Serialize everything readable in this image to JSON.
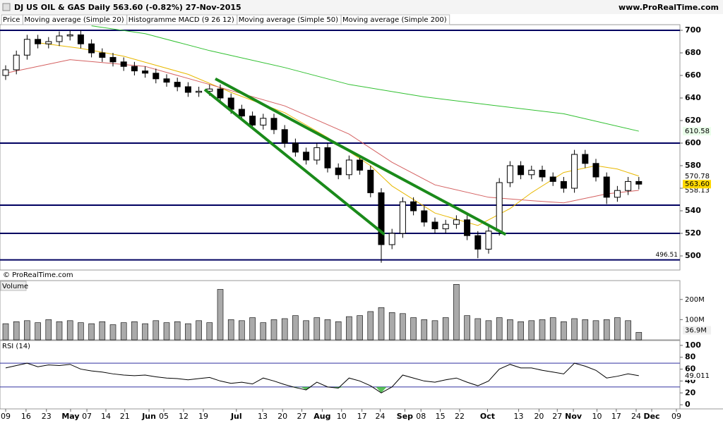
{
  "header": {
    "title": "DJ US OIL & GAS  Daily  563.60 (-0.82%)  27-Nov-2015",
    "site": "www.ProRealTime.com",
    "copyright": "© ProRealTime.com"
  },
  "tabs": [
    {
      "label": "Price",
      "color": "#000000"
    },
    {
      "label": "Moving average (Simple 20)",
      "color": "#e8b800"
    },
    {
      "label": "Histogramme MACD (9 26 12)",
      "color": "#000000"
    },
    {
      "label": "Moving average (Simple 50)",
      "color": "#d46060"
    },
    {
      "label": "Moving average (Simple 200)",
      "color": "#30c030"
    }
  ],
  "x_axis": {
    "labels": [
      {
        "label": "09",
        "at": 0
      },
      {
        "label": "16",
        "at": 1.9
      },
      {
        "label": "23",
        "at": 3.8
      },
      {
        "label": "May",
        "at": 6.05,
        "bold": true
      },
      {
        "label": "07",
        "at": 7.57
      },
      {
        "label": "14",
        "at": 9.34
      },
      {
        "label": "21",
        "at": 11.1
      },
      {
        "label": "Jun",
        "at": 13.36,
        "bold": true
      },
      {
        "label": "05",
        "at": 14.74
      },
      {
        "label": "12",
        "at": 16.58
      },
      {
        "label": "19",
        "at": 18.42
      },
      {
        "label": "Jul",
        "at": 21.5,
        "bold": true
      },
      {
        "label": "13",
        "at": 23.95
      },
      {
        "label": "20",
        "at": 25.8
      },
      {
        "label": "27",
        "at": 27.6
      },
      {
        "label": "Aug",
        "at": 29.5,
        "bold": true
      },
      {
        "label": "10",
        "at": 31.3
      },
      {
        "label": "17",
        "at": 33.2
      },
      {
        "label": "24",
        "at": 34.9
      },
      {
        "label": "Sep",
        "at": 37.2,
        "bold": true
      },
      {
        "label": "08",
        "at": 38.7
      },
      {
        "label": "15",
        "at": 40.5
      },
      {
        "label": "22",
        "at": 42.3
      },
      {
        "label": "Oct",
        "at": 44.9,
        "bold": true
      },
      {
        "label": "13",
        "at": 47.8
      },
      {
        "label": "20",
        "at": 49.7
      },
      {
        "label": "27",
        "at": 51.4
      },
      {
        "label": "Nov",
        "at": 52.9,
        "bold": true
      },
      {
        "label": "10",
        "at": 55.1
      },
      {
        "label": "17",
        "at": 56.9
      },
      {
        "label": "24",
        "at": 58.75
      },
      {
        "label": "Dec",
        "at": 60.2,
        "bold": true
      },
      {
        "label": "09",
        "at": 62.5
      }
    ]
  },
  "chart_data": [
    {
      "type": "candlestick",
      "label": "Price",
      "open": [
        660,
        665,
        678,
        692,
        688,
        690,
        695,
        696,
        688,
        680,
        676,
        672,
        668,
        664,
        662,
        657,
        654,
        650,
        645,
        646,
        648,
        640,
        630,
        624,
        616,
        622,
        612,
        600,
        592,
        585,
        596,
        578,
        572,
        585,
        576,
        556,
        510,
        520,
        548,
        540,
        530,
        524,
        528,
        532,
        518,
        506,
        522,
        565,
        580,
        572,
        576,
        570,
        566,
        560,
        590,
        582,
        570,
        552,
        558,
        566
      ],
      "high": [
        669,
        682,
        696,
        696,
        694,
        699,
        700,
        700,
        692,
        684,
        680,
        676,
        672,
        668,
        666,
        661,
        658,
        654,
        650,
        652,
        652,
        644,
        634,
        628,
        626,
        626,
        616,
        604,
        596,
        600,
        600,
        582,
        589,
        589,
        580,
        560,
        524,
        552,
        552,
        544,
        534,
        532,
        536,
        536,
        522,
        526,
        569,
        584,
        584,
        580,
        580,
        574,
        570,
        594,
        594,
        586,
        574,
        562,
        570,
        570
      ],
      "low": [
        656,
        661,
        674,
        684,
        684,
        686,
        691,
        684,
        676,
        672,
        668,
        664,
        660,
        658,
        653,
        650,
        646,
        641,
        641,
        642,
        636,
        626,
        620,
        612,
        612,
        608,
        596,
        588,
        581,
        581,
        574,
        568,
        568,
        572,
        552,
        494,
        506,
        516,
        536,
        526,
        520,
        520,
        524,
        514,
        498,
        502,
        518,
        561,
        568,
        568,
        566,
        562,
        556,
        556,
        578,
        566,
        546,
        548,
        554,
        559
      ],
      "close": [
        665,
        678,
        692,
        688,
        690,
        695,
        696,
        688,
        680,
        676,
        672,
        668,
        664,
        662,
        657,
        654,
        650,
        645,
        646,
        648,
        640,
        630,
        624,
        616,
        622,
        612,
        600,
        592,
        585,
        596,
        578,
        572,
        585,
        576,
        556,
        510,
        520,
        548,
        540,
        530,
        524,
        528,
        532,
        518,
        506,
        522,
        565,
        580,
        572,
        576,
        570,
        566,
        560,
        590,
        582,
        570,
        552,
        558,
        566,
        563.6
      ],
      "close_label": "563.60",
      "ylim": [
        487.5,
        705
      ],
      "yticks": [
        500,
        520,
        540,
        560,
        580,
        600,
        620,
        640,
        660,
        680,
        700
      ],
      "levels": [
        700,
        600,
        545,
        520,
        496.51
      ],
      "level_color": "#000060",
      "trendlines": [
        {
          "x": [
            19.54,
            46.6
          ],
          "y": [
            657,
            519
          ],
          "color": "#1a8a1a"
        },
        {
          "x": [
            18.55,
            35.3
          ],
          "y": [
            647.5,
            519
          ],
          "color": "#1a8a1a"
        }
      ],
      "series": [
        {
          "name": "Moving average (Simple 20)",
          "color": "#e8b800",
          "x": [
            3,
            7,
            11,
            17,
            21,
            26,
            30,
            34,
            36,
            40,
            44,
            47,
            49,
            52,
            55,
            57,
            59
          ],
          "values": [
            689,
            684,
            677,
            661,
            645,
            627,
            605,
            580,
            562,
            538,
            527,
            542,
            556,
            574,
            580,
            577,
            570.78
          ]
        },
        {
          "name": "Moving average (Simple 50)",
          "color": "#d46060",
          "x": [
            0,
            6,
            13,
            19,
            26,
            32,
            36,
            40,
            45,
            49,
            52,
            56,
            59
          ],
          "values": [
            662,
            674,
            668,
            652,
            633,
            608,
            583,
            563,
            552,
            549,
            547,
            555,
            558.13
          ]
        },
        {
          "name": "Moving average (Simple 200)",
          "color": "#30c030",
          "x": [
            8,
            13,
            19,
            26,
            32,
            39,
            45,
            52,
            59
          ],
          "values": [
            704,
            697,
            682,
            667,
            652,
            641,
            634,
            626,
            610.58
          ]
        }
      ]
    },
    {
      "type": "bar",
      "label": "Volume",
      "color": "#aaaaaa",
      "values": [
        80,
        90,
        95,
        85,
        100,
        90,
        95,
        85,
        80,
        90,
        75,
        85,
        90,
        80,
        95,
        85,
        90,
        80,
        95,
        85,
        250,
        100,
        95,
        110,
        85,
        100,
        105,
        120,
        95,
        110,
        100,
        90,
        115,
        120,
        140,
        160,
        135,
        130,
        110,
        100,
        95,
        110,
        275,
        120,
        105,
        95,
        110,
        100,
        90,
        95,
        100,
        110,
        90,
        105,
        100,
        95,
        100,
        110,
        95,
        36.9
      ],
      "current_label": "36.9M",
      "ylim": [
        0,
        290
      ],
      "yticks": [
        {
          "value": 200,
          "label": "200M"
        },
        {
          "value": 100,
          "label": "100M"
        }
      ]
    },
    {
      "type": "line",
      "label": "RSI (14)",
      "color": "#000000",
      "values": [
        62,
        66,
        70,
        64,
        67,
        66,
        68,
        60,
        57,
        55,
        52,
        50,
        49,
        50,
        47,
        45,
        44,
        42,
        44,
        46,
        40,
        36,
        38,
        35,
        45,
        40,
        34,
        29,
        25,
        38,
        30,
        28,
        45,
        40,
        32,
        20,
        30,
        50,
        45,
        40,
        38,
        42,
        45,
        38,
        32,
        40,
        60,
        68,
        62,
        62,
        58,
        55,
        52,
        70,
        65,
        58,
        45,
        48,
        52,
        49.011
      ],
      "ylim": [
        -7,
        107
      ],
      "yticks": [
        0,
        20,
        40,
        60,
        80,
        100
      ],
      "bands": [
        70,
        30
      ],
      "band_color": "#3030a0",
      "fill_color": "#30b030"
    }
  ]
}
